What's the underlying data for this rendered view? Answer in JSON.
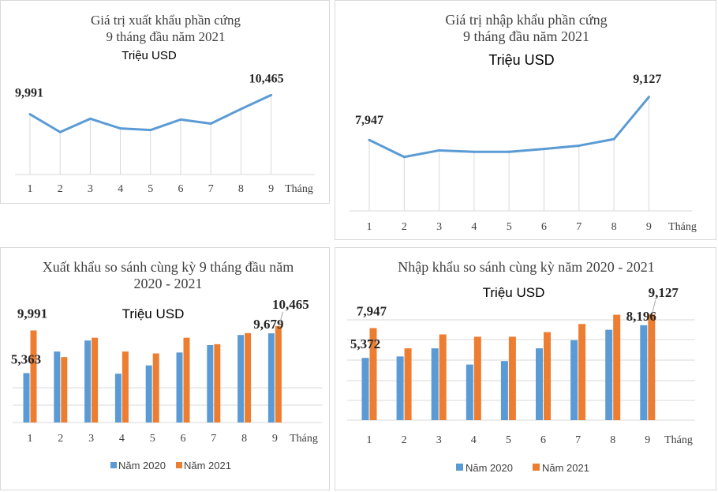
{
  "colors": {
    "line": "#5b9bd5",
    "bar2020": "#5b9bd5",
    "bar2021": "#ed7d31",
    "grid": "#d9d9d9"
  },
  "chart_data": [
    {
      "id": "export-line",
      "type": "line",
      "title": "Giá trị xuất khẩu phần cứng",
      "subtitle": "9 tháng đầu năm 2021",
      "unit": "Triệu USD",
      "xlabel": "Tháng",
      "categories": [
        "1",
        "2",
        "3",
        "4",
        "5",
        "6",
        "7",
        "8",
        "9"
      ],
      "values": [
        9.991,
        9.55,
        9.88,
        9.64,
        9.6,
        9.86,
        9.76,
        10.12,
        10.465
      ],
      "ylim": [
        8.5,
        11.0
      ],
      "data_labels": [
        {
          "index": 0,
          "text": "9,991"
        },
        {
          "index": 8,
          "text": "10,465"
        }
      ]
    },
    {
      "id": "import-line",
      "type": "line",
      "title": "Giá trị nhập khẩu phần cứng",
      "subtitle": "9 tháng đầu năm 2021",
      "unit": "Triệu USD",
      "xlabel": "Tháng",
      "categories": [
        "1",
        "2",
        "3",
        "4",
        "5",
        "6",
        "7",
        "8",
        "9"
      ],
      "values": [
        7.947,
        7.48,
        7.66,
        7.62,
        7.62,
        7.7,
        7.79,
        7.97,
        9.127
      ],
      "ylim": [
        6.0,
        9.6
      ],
      "data_labels": [
        {
          "index": 0,
          "text": "7,947"
        },
        {
          "index": 8,
          "text": "9,127"
        }
      ]
    },
    {
      "id": "export-bar",
      "type": "bar",
      "title": "Xuất khẩu so sánh cùng kỳ 9 tháng đầu năm",
      "subtitle": "2020 - 2021",
      "unit": "Triệu USD",
      "xlabel": "Tháng",
      "categories": [
        "1",
        "2",
        "3",
        "4",
        "5",
        "6",
        "7",
        "8",
        "9"
      ],
      "series": [
        {
          "name": "Năm 2020",
          "values": [
            5.363,
            7.7,
            8.9,
            5.3,
            6.2,
            7.6,
            8.4,
            9.5,
            9.679
          ]
        },
        {
          "name": "Năm 2021",
          "values": [
            9.991,
            7.1,
            9.2,
            7.7,
            7.5,
            9.2,
            8.5,
            9.7,
            10.465
          ]
        }
      ],
      "ylim": [
        0,
        12
      ],
      "data_labels": [
        {
          "series": 0,
          "index": 0,
          "text": "5,363"
        },
        {
          "series": 1,
          "index": 0,
          "text": "9,991"
        },
        {
          "series": 0,
          "index": 8,
          "text": "9,679"
        },
        {
          "series": 1,
          "index": 8,
          "text": "10,465"
        }
      ],
      "legend": "bottom"
    },
    {
      "id": "import-bar",
      "type": "bar",
      "title": "Nhập khẩu so sánh cùng kỳ năm 2020 - 2021",
      "subtitle": "",
      "unit": "Triệu USD",
      "xlabel": "Tháng",
      "categories": [
        "1",
        "2",
        "3",
        "4",
        "5",
        "6",
        "7",
        "8",
        "9"
      ],
      "series": [
        {
          "name": "Năm 2020",
          "values": [
            5.372,
            5.5,
            6.2,
            4.8,
            5.1,
            6.2,
            6.9,
            7.8,
            8.196
          ]
        },
        {
          "name": "Năm 2021",
          "values": [
            7.947,
            6.2,
            7.4,
            7.2,
            7.2,
            7.6,
            8.3,
            9.1,
            9.127
          ]
        }
      ],
      "ylim": [
        0,
        10.5
      ],
      "data_labels": [
        {
          "series": 0,
          "index": 0,
          "text": "5,372"
        },
        {
          "series": 1,
          "index": 0,
          "text": "7,947"
        },
        {
          "series": 0,
          "index": 8,
          "text": "8,196"
        },
        {
          "series": 1,
          "index": 8,
          "text": "9,127"
        }
      ],
      "legend": "bottom"
    }
  ]
}
